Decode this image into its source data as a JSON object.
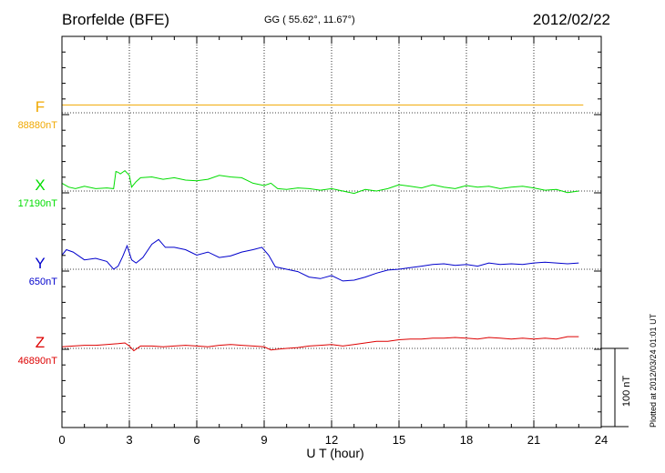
{
  "header": {
    "station": "Brorfelde (BFE)",
    "coords": "GG ( 55.62°,  11.67°)",
    "date": "2012/02/22"
  },
  "footer_note": "Plotted at 2012/03/24 01:01 UT",
  "chart_data": {
    "type": "line",
    "xlabel": "U T (hour)",
    "xlim": [
      0,
      24
    ],
    "xticks": [
      0,
      3,
      6,
      9,
      12,
      15,
      18,
      21,
      24
    ],
    "scale_bar_label": "100 nT",
    "scale_bar_nT": 100,
    "grid": true,
    "series": [
      {
        "name": "F",
        "baseline_label": "88880nT",
        "color": "#f0a800",
        "x": [
          0,
          23.2
        ],
        "y": [
          10,
          10
        ]
      },
      {
        "name": "X",
        "baseline_label": "17190nT",
        "color": "#00dd00",
        "x": [
          0,
          0.3,
          0.6,
          1.0,
          1.5,
          2.0,
          2.3,
          2.4,
          2.5,
          2.6,
          2.8,
          3.0,
          3.1,
          3.3,
          3.5,
          4.0,
          4.5,
          5.0,
          5.5,
          6.0,
          6.5,
          7.0,
          7.5,
          8.0,
          8.5,
          9.0,
          9.3,
          9.6,
          10.0,
          10.5,
          11.0,
          11.5,
          12.0,
          12.5,
          13.0,
          13.5,
          14.0,
          14.5,
          15.0,
          15.5,
          16.0,
          16.5,
          17.0,
          17.5,
          18.0,
          18.5,
          19.0,
          19.5,
          20.0,
          20.5,
          21.0,
          21.5,
          22.0,
          22.5,
          23.0
        ],
        "y": [
          10,
          5,
          3,
          6,
          3,
          4,
          3,
          25,
          24,
          22,
          26,
          20,
          5,
          12,
          17,
          18,
          15,
          17,
          14,
          13,
          15,
          20,
          18,
          17,
          10,
          7,
          10,
          3,
          2,
          4,
          3,
          1,
          3,
          0,
          -3,
          2,
          0,
          3,
          8,
          6,
          4,
          8,
          5,
          3,
          7,
          5,
          6,
          3,
          5,
          6,
          4,
          1,
          2,
          -2,
          0
        ]
      },
      {
        "name": "Y",
        "baseline_label": "650nT",
        "color": "#0000cc",
        "x": [
          0,
          0.2,
          0.5,
          1.0,
          1.5,
          2.0,
          2.3,
          2.5,
          2.7,
          2.9,
          3.1,
          3.3,
          3.6,
          4.0,
          4.3,
          4.6,
          5.0,
          5.5,
          6.0,
          6.5,
          7.0,
          7.5,
          8.0,
          8.5,
          8.9,
          9.2,
          9.5,
          10.0,
          10.5,
          11.0,
          11.5,
          12.0,
          12.5,
          13.0,
          13.5,
          14.0,
          14.5,
          15.0,
          15.5,
          16.0,
          16.5,
          17.0,
          17.5,
          18.0,
          18.5,
          19.0,
          19.5,
          20.0,
          20.5,
          21.0,
          21.5,
          22.0,
          22.5,
          23.0
        ],
        "y": [
          18,
          25,
          22,
          12,
          14,
          10,
          0,
          4,
          16,
          30,
          12,
          8,
          15,
          32,
          38,
          28,
          28,
          25,
          18,
          22,
          15,
          17,
          22,
          25,
          28,
          18,
          3,
          0,
          -3,
          -10,
          -12,
          -8,
          -15,
          -14,
          -10,
          -5,
          -1,
          0,
          2,
          4,
          6,
          7,
          5,
          6,
          4,
          8,
          6,
          7,
          6,
          8,
          9,
          8,
          7,
          8
        ]
      },
      {
        "name": "Z",
        "baseline_label": "46890nT",
        "color": "#dd0000",
        "x": [
          0,
          0.5,
          1.0,
          1.5,
          2.0,
          2.5,
          2.8,
          3.0,
          3.2,
          3.5,
          4.0,
          4.5,
          5.0,
          5.5,
          6.0,
          6.5,
          7.0,
          7.5,
          8.0,
          8.5,
          9.0,
          9.3,
          9.6,
          10.0,
          10.5,
          11.0,
          11.5,
          12.0,
          12.5,
          13.0,
          13.5,
          14.0,
          14.5,
          15.0,
          15.5,
          16.0,
          16.5,
          17.0,
          17.5,
          18.0,
          18.5,
          19.0,
          19.5,
          20.0,
          20.5,
          21.0,
          21.5,
          22.0,
          22.5,
          23.0
        ],
        "y": [
          2,
          3,
          4,
          4,
          5,
          6,
          7,
          3,
          -3,
          3,
          3,
          2,
          3,
          4,
          3,
          2,
          4,
          5,
          4,
          3,
          2,
          -2,
          -1,
          0,
          1,
          3,
          4,
          5,
          3,
          5,
          7,
          9,
          9,
          11,
          12,
          12,
          13,
          13,
          14,
          13,
          12,
          14,
          13,
          12,
          13,
          12,
          13,
          12,
          15,
          15
        ]
      }
    ]
  }
}
